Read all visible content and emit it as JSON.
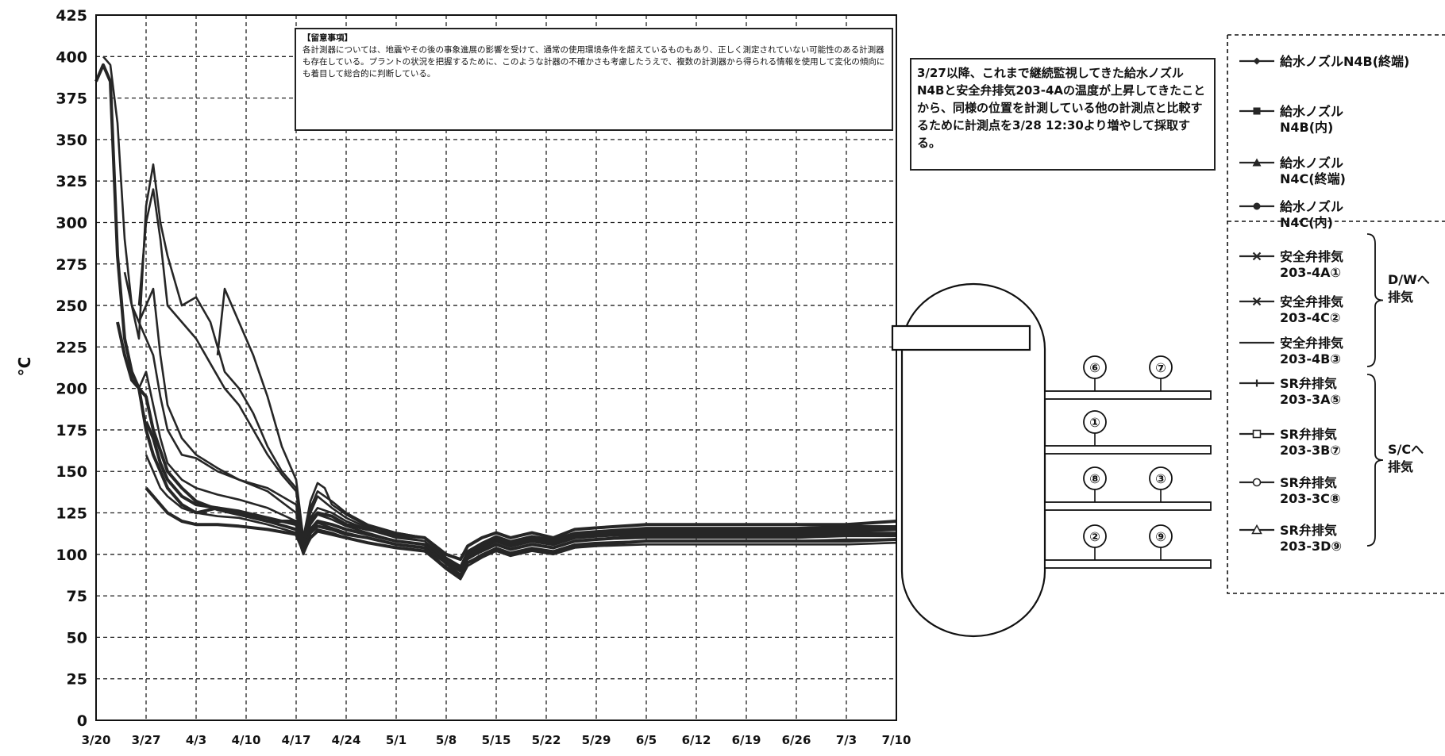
{
  "chart_data": {
    "type": "line",
    "title": "",
    "xlabel": "",
    "ylabel": "°C",
    "ylim": [
      0,
      425
    ],
    "yticks": [
      0,
      25,
      50,
      75,
      100,
      125,
      150,
      175,
      200,
      225,
      250,
      275,
      300,
      325,
      350,
      375,
      400,
      425
    ],
    "x_range_days": [
      0,
      112
    ],
    "x_tick_days": [
      0,
      7,
      14,
      21,
      28,
      35,
      42,
      49,
      56,
      63,
      70,
      77,
      84,
      91,
      98,
      105,
      112
    ],
    "xticks": [
      "3/20",
      "3/27",
      "4/3",
      "4/10",
      "4/17",
      "4/24",
      "5/1",
      "5/8",
      "5/15",
      "5/22",
      "5/29",
      "6/5",
      "6/12",
      "6/19",
      "6/26",
      "7/3",
      "7/10"
    ],
    "grid": true,
    "legend_position": "right",
    "series": [
      {
        "name": "給水ノズルN4B(終端)",
        "marker": "diamond",
        "x": [
          0,
          1,
          2,
          3,
          4,
          5,
          6,
          7,
          8,
          10,
          12,
          14,
          17,
          20,
          24,
          28,
          29,
          30,
          31,
          33,
          35,
          38,
          42,
          46,
          49,
          51,
          52,
          54,
          56,
          58,
          61,
          64,
          67,
          70,
          77,
          84,
          91,
          98,
          105,
          112
        ],
        "y": [
          385,
          395,
          385,
          280,
          230,
          210,
          200,
          175,
          160,
          140,
          130,
          125,
          128,
          125,
          120,
          120,
          108,
          120,
          125,
          123,
          118,
          115,
          112,
          110,
          100,
          97,
          105,
          110,
          113,
          110,
          113,
          110,
          115,
          116,
          118,
          118,
          118,
          118,
          118,
          120
        ]
      },
      {
        "name": "給水ノズル N4B(内)",
        "marker": "square",
        "x": [
          7,
          8,
          9,
          10,
          12,
          14,
          17,
          20,
          24,
          28,
          29,
          30,
          31,
          33,
          35,
          38,
          42,
          46,
          49,
          51,
          52,
          54,
          56,
          58,
          61,
          64,
          67,
          70,
          77,
          84,
          91,
          98,
          105,
          112
        ],
        "y": [
          180,
          170,
          155,
          145,
          135,
          130,
          128,
          126,
          122,
          118,
          106,
          115,
          120,
          118,
          115,
          112,
          108,
          106,
          97,
          92,
          100,
          104,
          108,
          105,
          108,
          106,
          110,
          111,
          113,
          113,
          113,
          113,
          114,
          115
        ]
      },
      {
        "name": "給水ノズル N4C(終端)",
        "marker": "triangle",
        "x": [
          3,
          4,
          5,
          6,
          7,
          8,
          10,
          12,
          14,
          17,
          20,
          24,
          28,
          29,
          30,
          31,
          33,
          35,
          38,
          42,
          46,
          49,
          51,
          52,
          54,
          56,
          58,
          61,
          64,
          67,
          70,
          77,
          84,
          91,
          98,
          105,
          112
        ],
        "y": [
          240,
          220,
          205,
          200,
          195,
          175,
          150,
          140,
          132,
          127,
          124,
          120,
          115,
          104,
          113,
          117,
          115,
          112,
          110,
          106,
          104,
          95,
          90,
          98,
          102,
          106,
          103,
          106,
          104,
          108,
          109,
          111,
          111,
          111,
          111,
          112,
          112
        ]
      },
      {
        "name": "給水ノズル N4C(内)",
        "marker": "circle",
        "x": [
          7,
          8,
          9,
          10,
          12,
          14,
          17,
          20,
          24,
          28,
          29,
          30,
          31,
          33,
          35,
          38,
          42,
          46,
          49,
          51,
          52,
          54,
          56,
          58,
          61,
          64,
          67,
          70,
          77,
          84,
          91,
          98,
          105,
          112
        ],
        "y": [
          140,
          135,
          130,
          125,
          120,
          118,
          118,
          117,
          115,
          112,
          102,
          110,
          114,
          112,
          110,
          107,
          104,
          102,
          92,
          87,
          95,
          99,
          103,
          100,
          103,
          101,
          105,
          106,
          108,
          108,
          108,
          108,
          108,
          109
        ]
      },
      {
        "name": "安全弁排気 203-4A①",
        "marker": "x",
        "x": [
          1,
          2,
          3,
          4,
          5,
          6,
          7,
          8,
          9,
          10,
          12,
          14,
          16,
          18,
          20,
          22,
          24,
          26,
          28,
          29,
          30,
          31,
          33,
          35,
          38,
          42,
          46,
          49,
          51,
          52,
          54,
          56,
          58,
          61,
          64,
          67,
          70,
          77,
          84,
          91,
          98,
          105,
          112
        ],
        "y": [
          400,
          395,
          360,
          290,
          250,
          230,
          310,
          335,
          300,
          280,
          250,
          255,
          240,
          210,
          200,
          185,
          165,
          150,
          140,
          110,
          128,
          138,
          132,
          125,
          118,
          113,
          110,
          98,
          93,
          102,
          107,
          111,
          108,
          111,
          109,
          113,
          114,
          116,
          116,
          116,
          116,
          117,
          117
        ]
      },
      {
        "name": "安全弁排気 203-4C②",
        "marker": "x",
        "x": [
          6,
          7,
          8,
          9,
          10,
          12,
          14,
          16,
          18,
          20,
          22,
          24,
          26,
          28,
          29,
          30,
          31,
          33,
          35,
          38,
          42,
          46,
          49,
          51,
          52,
          54,
          56,
          58,
          61,
          64,
          67,
          70,
          77,
          84,
          91,
          98,
          105,
          112
        ],
        "y": [
          250,
          300,
          320,
          290,
          250,
          240,
          230,
          215,
          200,
          190,
          175,
          160,
          148,
          138,
          108,
          125,
          135,
          128,
          122,
          116,
          111,
          108,
          96,
          91,
          100,
          105,
          109,
          106,
          109,
          107,
          111,
          112,
          114,
          114,
          114,
          114,
          115,
          115
        ]
      },
      {
        "name": "安全弁排気 203-4B③",
        "marker": "none",
        "x": [
          17,
          18,
          19,
          20,
          22,
          24,
          26,
          28,
          29,
          30,
          31,
          32,
          33,
          35,
          38,
          42,
          46,
          49,
          51,
          52,
          54,
          56,
          58,
          61,
          64,
          67,
          70,
          77,
          84,
          91,
          98,
          105,
          112
        ],
        "y": [
          220,
          260,
          250,
          240,
          220,
          195,
          165,
          145,
          110,
          132,
          143,
          140,
          130,
          124,
          117,
          113,
          110,
          97,
          92,
          101,
          106,
          110,
          107,
          110,
          108,
          112,
          113,
          115,
          115,
          115,
          115,
          116,
          116
        ]
      },
      {
        "name": "SR弁排気 203-3A⑤",
        "marker": "plus",
        "x": [
          4,
          5,
          6,
          7,
          8,
          9,
          10,
          12,
          14,
          17,
          20,
          24,
          28,
          29,
          30,
          31,
          33,
          35,
          38,
          42,
          46,
          49,
          51,
          52,
          54,
          56,
          58,
          61,
          64,
          67,
          70,
          77,
          84,
          91,
          98,
          105,
          112
        ],
        "y": [
          270,
          250,
          240,
          230,
          220,
          195,
          175,
          160,
          158,
          150,
          145,
          140,
          130,
          107,
          122,
          128,
          125,
          120,
          115,
          110,
          108,
          96,
          90,
          99,
          104,
          108,
          105,
          108,
          106,
          110,
          111,
          112,
          112,
          112,
          112,
          113,
          113
        ]
      },
      {
        "name": "SR弁排気 203-3B⑦",
        "marker": "square-open",
        "x": [
          5,
          6,
          7,
          8,
          9,
          10,
          12,
          14,
          17,
          20,
          24,
          28,
          29,
          30,
          31,
          33,
          35,
          38,
          42,
          46,
          49,
          51,
          52,
          54,
          56,
          58,
          61,
          64,
          67,
          70,
          77,
          84,
          91,
          98,
          105,
          112
        ],
        "y": [
          250,
          240,
          250,
          260,
          220,
          190,
          170,
          160,
          152,
          145,
          138,
          125,
          104,
          118,
          124,
          121,
          117,
          113,
          108,
          106,
          94,
          88,
          97,
          102,
          106,
          103,
          106,
          104,
          108,
          109,
          110,
          110,
          110,
          110,
          111,
          111
        ]
      },
      {
        "name": "SR弁排気 203-3C⑧",
        "marker": "circle-open",
        "x": [
          6,
          7,
          8,
          9,
          10,
          12,
          14,
          17,
          20,
          24,
          28,
          29,
          30,
          31,
          33,
          35,
          38,
          42,
          46,
          49,
          51,
          52,
          54,
          56,
          58,
          61,
          64,
          67,
          70,
          77,
          84,
          91,
          98,
          105,
          112
        ],
        "y": [
          200,
          210,
          190,
          170,
          155,
          145,
          140,
          136,
          133,
          128,
          120,
          102,
          114,
          119,
          116,
          113,
          110,
          106,
          104,
          92,
          86,
          95,
          100,
          104,
          101,
          104,
          102,
          106,
          107,
          108,
          108,
          108,
          108,
          109,
          109
        ]
      },
      {
        "name": "SR弁排気 203-3D⑨",
        "marker": "triangle-open",
        "x": [
          7,
          8,
          9,
          10,
          12,
          14,
          17,
          20,
          24,
          28,
          29,
          30,
          31,
          33,
          35,
          38,
          42,
          46,
          49,
          51,
          52,
          54,
          56,
          58,
          61,
          64,
          67,
          70,
          77,
          84,
          91,
          98,
          105,
          112
        ],
        "y": [
          160,
          150,
          140,
          135,
          128,
          125,
          123,
          122,
          118,
          113,
          100,
          110,
          115,
          113,
          110,
          107,
          104,
          102,
          91,
          85,
          93,
          98,
          102,
          99,
          102,
          100,
          104,
          105,
          106,
          106,
          106,
          106,
          106,
          107
        ]
      }
    ],
    "legend_groups": [
      {
        "label": "D/Wへ 排気",
        "series_indices": [
          4,
          5,
          6
        ]
      },
      {
        "label": "S/Cへ 排気",
        "series_indices": [
          7,
          8,
          9,
          10
        ]
      }
    ],
    "annotations": [
      {
        "id": "caution",
        "title": "【留意事項】",
        "text": "各計測器については、地震やその後の事象進展の影響を受けて、通常の使用環境条件を超えているものもあり、正しく測定されていない可能性のある計測器も存在している。プラントの状況を把握するために、このような計器の不確かさも考慮したうえで、複数の計測器から得られる情報を使用して変化の傾向にも着目して総合的に判断している。"
      },
      {
        "id": "added-points",
        "text": "3/27以降、これまで継続監視してきた給水ノズルN4Bと安全弁排気203-4Aの温度が上昇してきたことから、同様の位置を計測している他の計測点と比較するために計測点を3/28 12:30より増やして採取する。"
      }
    ]
  },
  "diagram": {
    "nozzle_labels": [
      "⑥",
      "⑦",
      "①",
      "⑧",
      "③",
      "②",
      "⑨"
    ]
  },
  "colors": {
    "series_line": "#262626",
    "grid": "#222222",
    "frame": "#111111"
  }
}
